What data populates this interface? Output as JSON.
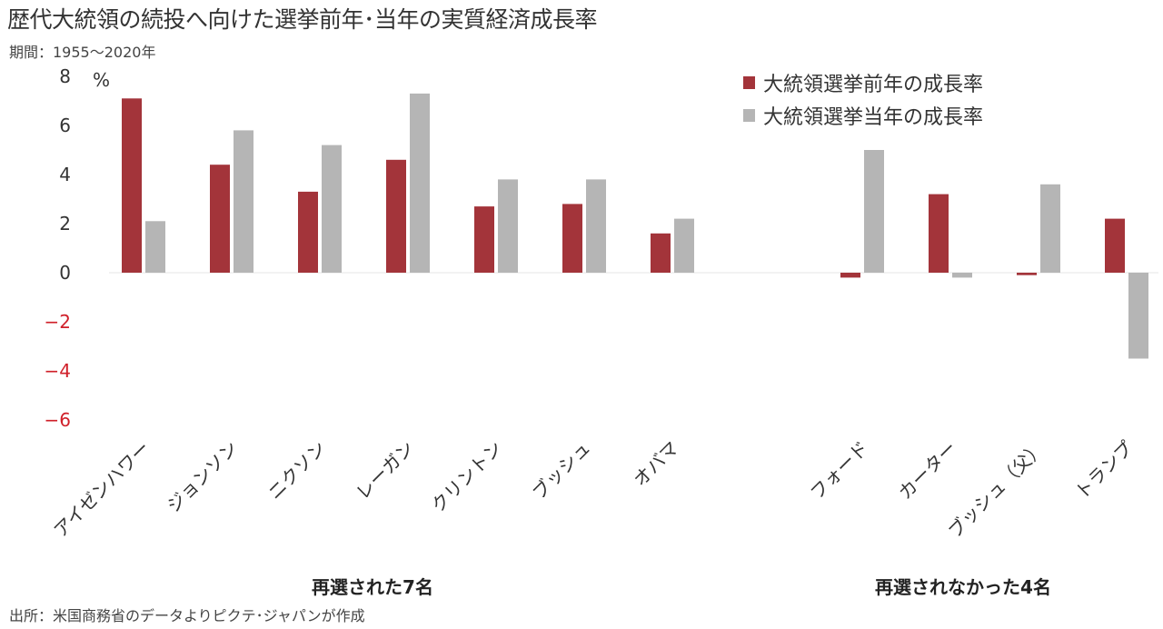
{
  "title": "歴代大統領の続投へ向けた選挙前年･当年の実質経済成長率",
  "subtitle": "期間：1955～2020年",
  "source": "出所：米国商務省のデータよりピクテ･ジャパンが作成",
  "colors": {
    "pre_year": "#a3343a",
    "election_year": "#b5b5b5",
    "negative_tick": "#d0202a",
    "positive_tick": "#333333"
  },
  "chart_data": {
    "type": "bar",
    "ylabel": "%",
    "ylim": [
      -6,
      8
    ],
    "yticks": [
      8,
      6,
      4,
      2,
      0,
      -2,
      -4,
      -6
    ],
    "ytick_labels": [
      "8",
      "6",
      "4",
      "2",
      "0",
      "−2",
      "−4",
      "−6"
    ],
    "grid": false,
    "legend_position": "top-right",
    "categories": [
      "アイゼンハワー",
      "ジョンソン",
      "ニクソン",
      "レーガン",
      "クリントン",
      "ブッシュ",
      "オバマ",
      "フォード",
      "カーター",
      "ブッシュ（父）",
      "トランプ"
    ],
    "series": [
      {
        "name": "大統領選挙前年の成長率",
        "values": [
          7.1,
          4.4,
          3.3,
          4.6,
          2.7,
          2.8,
          1.6,
          -0.2,
          3.2,
          -0.1,
          2.2
        ]
      },
      {
        "name": "大統領選挙当年の成長率",
        "values": [
          2.1,
          5.8,
          5.2,
          7.3,
          3.8,
          3.8,
          2.2,
          5.0,
          -0.2,
          3.6,
          -3.5
        ]
      }
    ],
    "groups": [
      {
        "label": "再選された7名",
        "count": 7
      },
      {
        "label": "再選されなかった4名",
        "count": 4
      }
    ]
  }
}
